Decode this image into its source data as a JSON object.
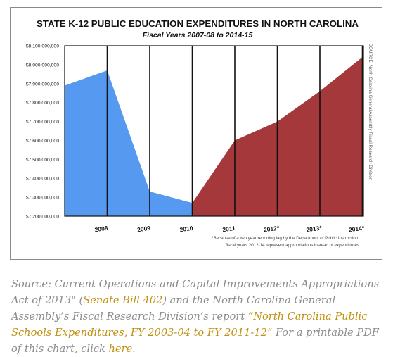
{
  "chart_data": {
    "type": "area",
    "title": "STATE K-12 PUBLIC EDUCATION EXPENDITURES IN NORTH CAROLINA",
    "subtitle": "Fiscal Years 2007-08 to 2014-15",
    "xlabel": "",
    "ylabel": "",
    "categories": [
      "2008",
      "2009",
      "2010",
      "2011",
      "2012*",
      "2013*",
      "2014*"
    ],
    "ylim": [
      7200000000,
      8100000000
    ],
    "y_ticks": [
      "$7,200,000,000",
      "$7,300,000,000",
      "$7,400,000,000",
      "$7,500,000,000",
      "$7,600,000,000",
      "$7,700,000,000",
      "$7,800,000,000",
      "$7,900,000,000",
      "$8,000,000,000",
      "$8,100,000,000"
    ],
    "grid": "vertical lines at each year",
    "series": [
      {
        "color": "#5599f0",
        "points": [
          {
            "x": "2007",
            "y": 7890000000
          },
          {
            "x": "2008",
            "y": 7970000000
          },
          {
            "x": "2009",
            "y": 7330000000
          },
          {
            "x": "2010",
            "y": 7270000000
          }
        ]
      },
      {
        "color": "#a5383b",
        "points": [
          {
            "x": "2010",
            "y": 7270000000
          },
          {
            "x": "2011",
            "y": 7600000000
          },
          {
            "x": "2012*",
            "y": 7700000000
          },
          {
            "x": "2013*",
            "y": 7860000000
          },
          {
            "x": "2014*",
            "y": 8040000000
          }
        ]
      }
    ],
    "source_note": "SOURCE: North Carolina General Assembly Fiscal Research Division",
    "footnote_line1": "*Because of a two year reporting lag by the Department of Public Instruction,",
    "footnote_line2": "fiscal years 2012-14 represent appropriations instead of expenditures"
  },
  "caption": {
    "part1": "Source: Current Operations and Capital Improvements Appropriations Act of 2013\" (",
    "link1": "Senate Bill 402",
    "part2": ") and the North Carolina General Assembly’s  Fiscal Research Division’s report ",
    "link2": "“North Carolina Public Schools Expenditures, FY 2003-04 to FY 2011-12”",
    "part3": " For a printable PDF of this chart, click ",
    "link3": "here",
    "part4": "."
  },
  "colors": {
    "blue_area": "#5599f0",
    "red_area": "#a5383b",
    "caption_text": "#8c8c8c",
    "link": "#c09010"
  }
}
